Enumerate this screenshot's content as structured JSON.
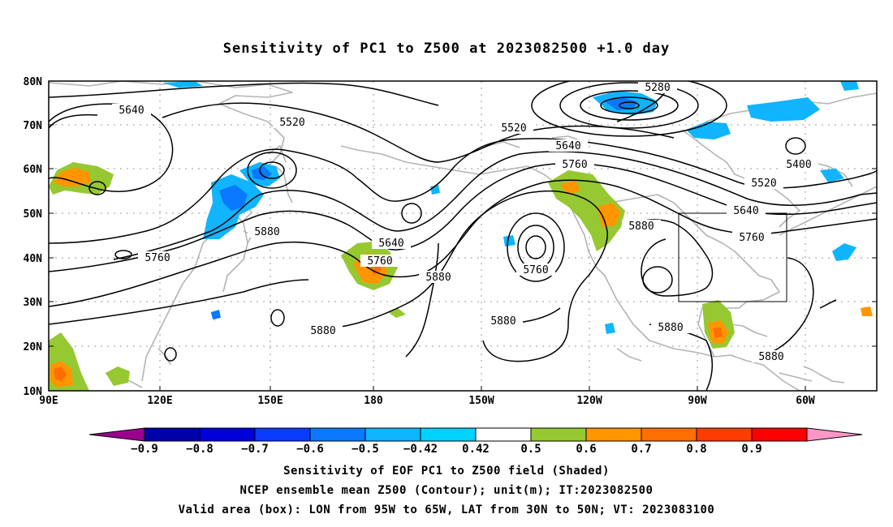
{
  "title": "Sensitivity of PC1 to Z500 at 2023082500 +1.0 day",
  "lat_labels": [
    "80N",
    "70N",
    "60N",
    "50N",
    "40N",
    "30N",
    "20N",
    "10N"
  ],
  "lon_labels": [
    "90E",
    "120E",
    "150E",
    "180",
    "150W",
    "120W",
    "90W",
    "60W"
  ],
  "contour_labels": [
    "5640",
    "5520",
    "5520",
    "5280",
    "5640",
    "5760",
    "5400",
    "5520",
    "5640",
    "5760",
    "5880",
    "5760",
    "5640",
    "5760",
    "5880",
    "5760",
    "5880",
    "5880",
    "5880",
    "5880",
    "5880"
  ],
  "colorbar": {
    "labels": [
      "−0.9",
      "−0.8",
      "−0.7",
      "−0.6",
      "−0.5",
      "−0.42",
      "0.42",
      "0.5",
      "0.6",
      "0.7",
      "0.8",
      "0.9"
    ],
    "colors": [
      "#9a008f",
      "#0000a8",
      "#0000d8",
      "#0a3cff",
      "#0a78ff",
      "#10b4ff",
      "#00d2ff",
      "#ffffff",
      "#96c832",
      "#ff9600",
      "#ff6e00",
      "#ff3c00",
      "#ff0000",
      "#ff96c8"
    ]
  },
  "caption_lines": [
    "Sensitivity of EOF PC1 to Z500 field (Shaded)",
    "NCEP ensemble mean Z500 (Contour); unit(m); IT:2023082500",
    "Valid area (box): LON from 95W to 65W, LAT from 30N to 50N; VT: 2023083100"
  ]
}
